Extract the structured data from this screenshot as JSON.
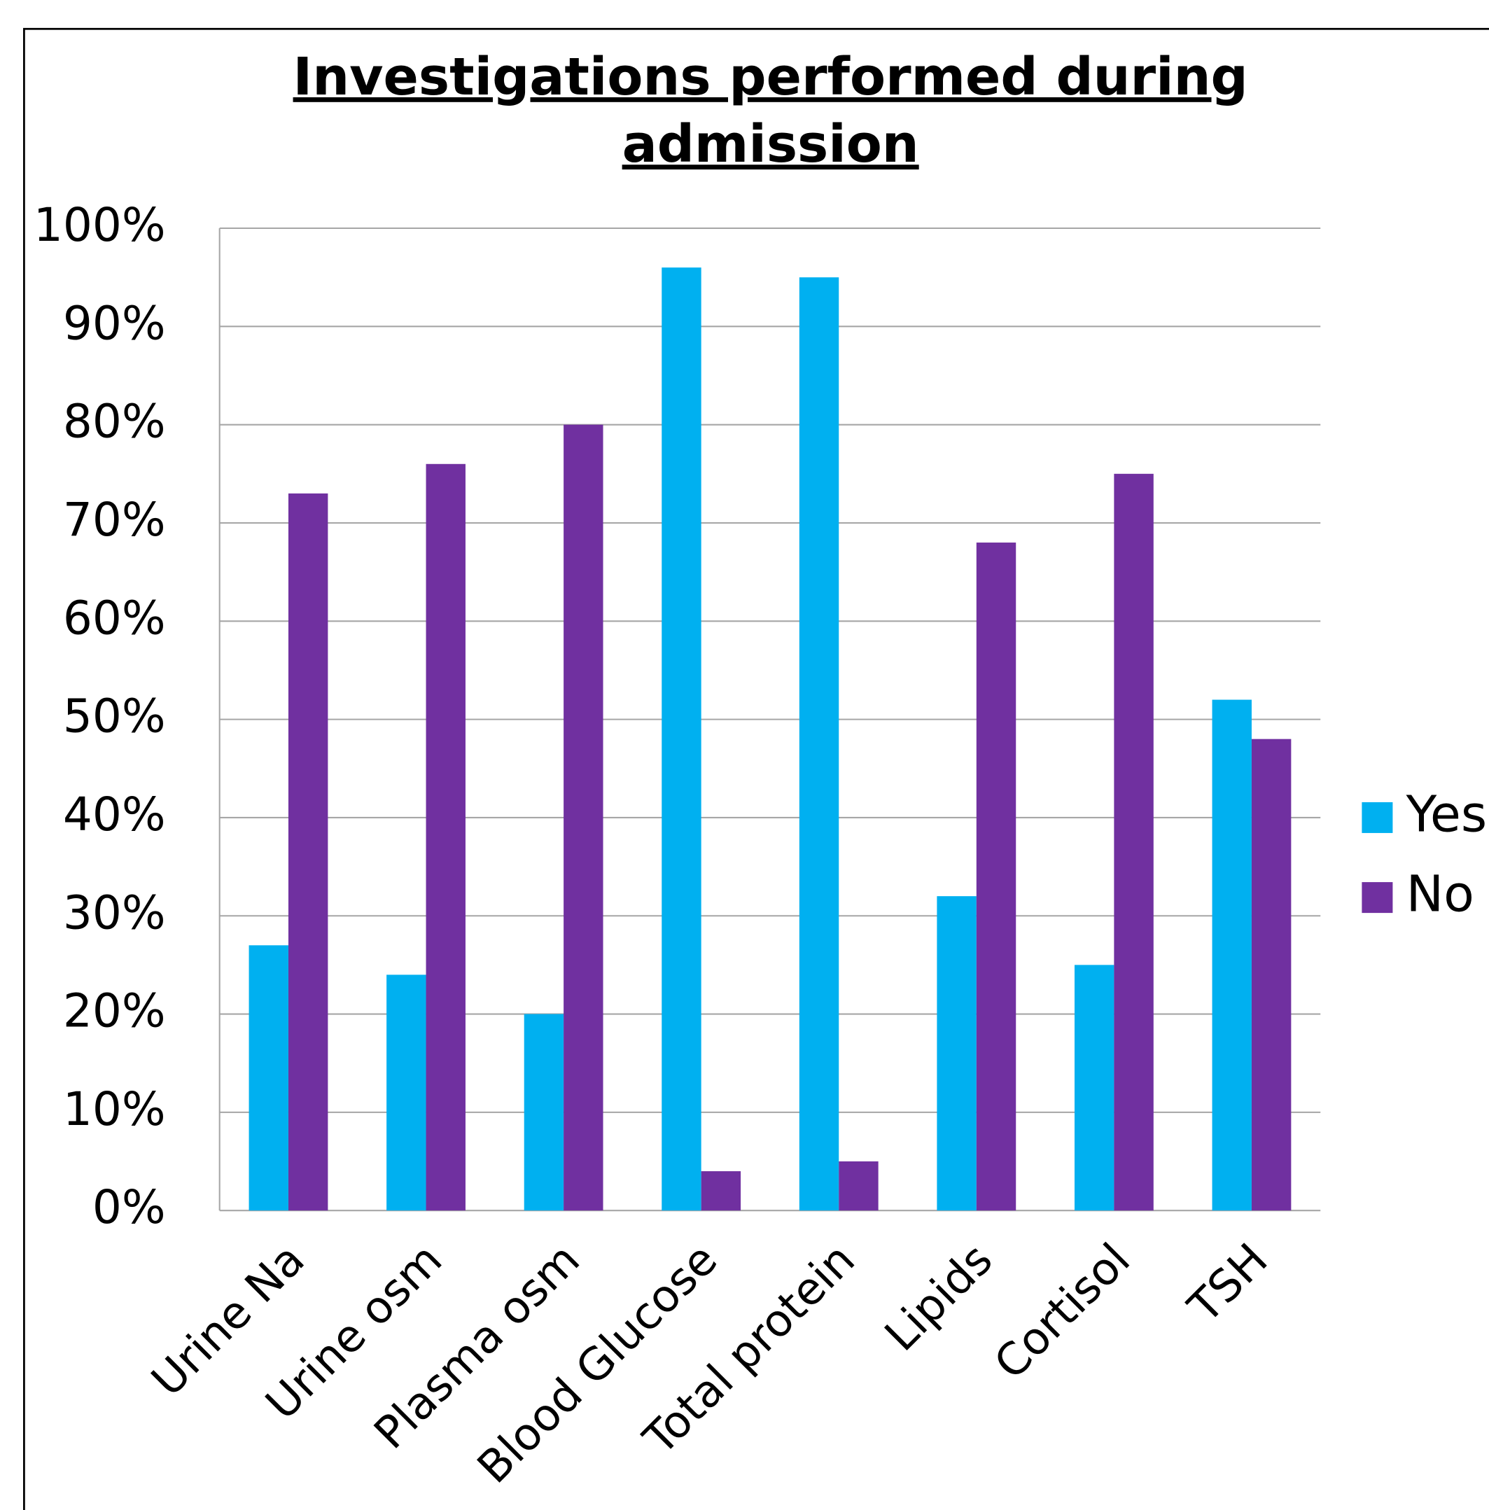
{
  "chart_data": {
    "type": "bar",
    "title": "Investigations performed during admission",
    "categories": [
      "Urine Na",
      "Urine osm",
      "Plasma osm",
      "Blood Glucose",
      "Total protein",
      "Lipids",
      "Cortisol",
      "TSH"
    ],
    "series": [
      {
        "name": "Yes",
        "color": "#00b0f0",
        "values": [
          27,
          24,
          20,
          96,
          95,
          32,
          25,
          52
        ]
      },
      {
        "name": "No",
        "color": "#7030a0",
        "values": [
          73,
          76,
          80,
          4,
          5,
          68,
          75,
          48
        ]
      }
    ],
    "ylim": [
      0,
      100
    ],
    "yticks": [
      {
        "value": 0,
        "label": "0%"
      },
      {
        "value": 10,
        "label": "10%"
      },
      {
        "value": 20,
        "label": "20%"
      },
      {
        "value": 30,
        "label": "30%"
      },
      {
        "value": 40,
        "label": "40%"
      },
      {
        "value": 50,
        "label": "50%"
      },
      {
        "value": 60,
        "label": "60%"
      },
      {
        "value": 70,
        "label": "70%"
      },
      {
        "value": 80,
        "label": "80%"
      },
      {
        "value": 90,
        "label": "90%"
      },
      {
        "value": 100,
        "label": "100%"
      }
    ],
    "grid": true,
    "legend": "right"
  }
}
